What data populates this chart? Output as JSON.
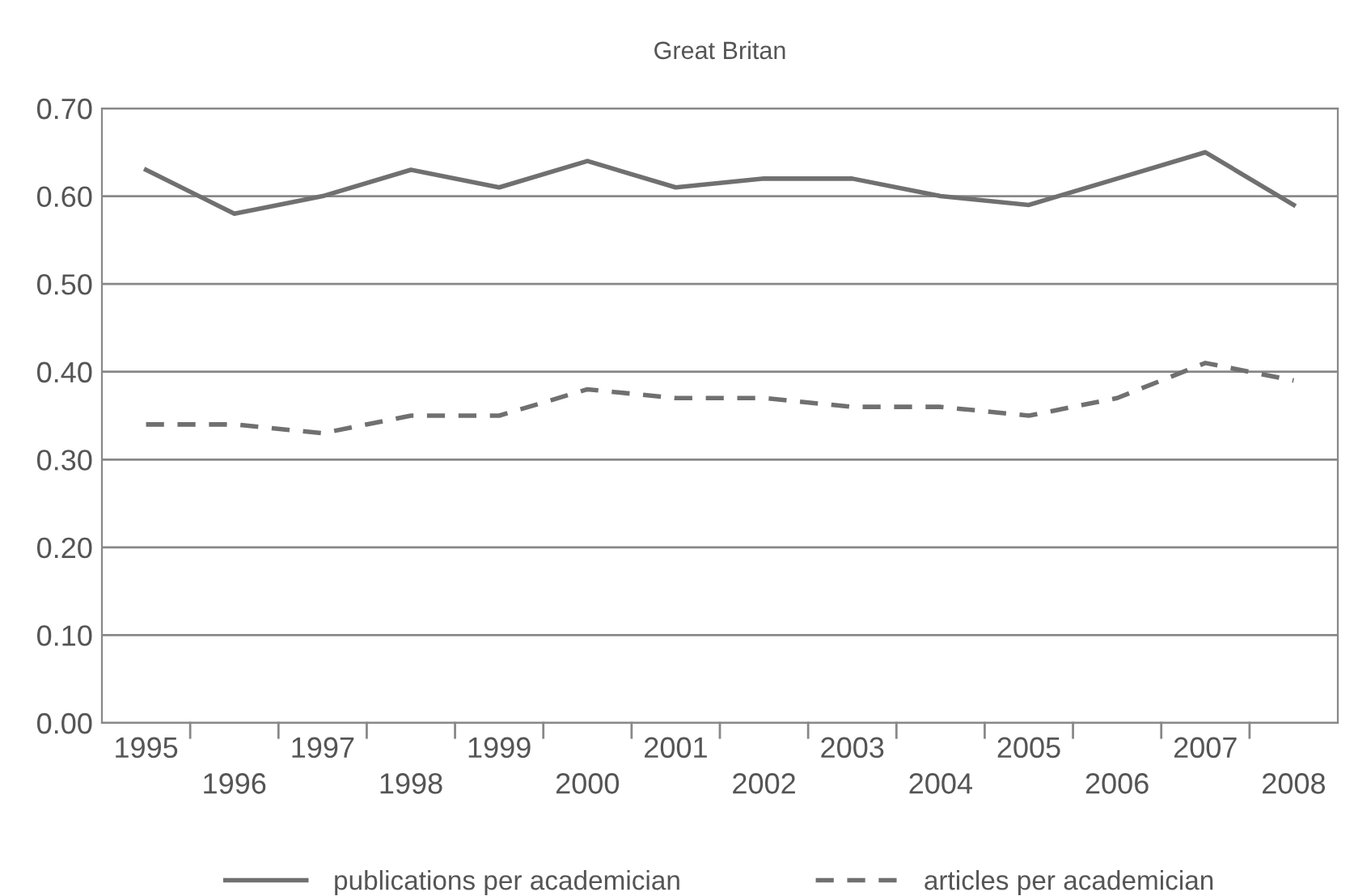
{
  "chart_data": {
    "type": "line",
    "title": "Great Britan",
    "categories": [
      "1995",
      "1996",
      "1997",
      "1998",
      "1999",
      "2000",
      "2001",
      "2002",
      "2003",
      "2004",
      "2005",
      "2006",
      "2007",
      "2008"
    ],
    "series": [
      {
        "name": "publications per academician",
        "color": "#707070",
        "line_style": "solid",
        "values": [
          0.63,
          0.58,
          0.6,
          0.63,
          0.61,
          0.64,
          0.61,
          0.62,
          0.62,
          0.6,
          0.59,
          0.62,
          0.65,
          0.59
        ]
      },
      {
        "name": "articles per academician",
        "color": "#707070",
        "line_style": "dashed",
        "values": [
          0.34,
          0.34,
          0.33,
          0.35,
          0.35,
          0.38,
          0.37,
          0.37,
          0.36,
          0.36,
          0.35,
          0.37,
          0.41,
          0.39
        ]
      }
    ],
    "ylim": [
      0,
      0.7
    ],
    "yticks": [
      {
        "value": 0,
        "label": "0.00"
      },
      {
        "value": 0.1,
        "label": "0.10"
      },
      {
        "value": 0.2,
        "label": "0.20"
      },
      {
        "value": 0.3,
        "label": "0.30"
      },
      {
        "value": 0.4,
        "label": "0.40"
      },
      {
        "value": 0.5,
        "label": "0.50"
      },
      {
        "value": 0.6,
        "label": "0.60"
      },
      {
        "value": 0.7,
        "label": "0.70"
      }
    ],
    "grid": "y",
    "legend": "bottom",
    "marker": "none"
  }
}
